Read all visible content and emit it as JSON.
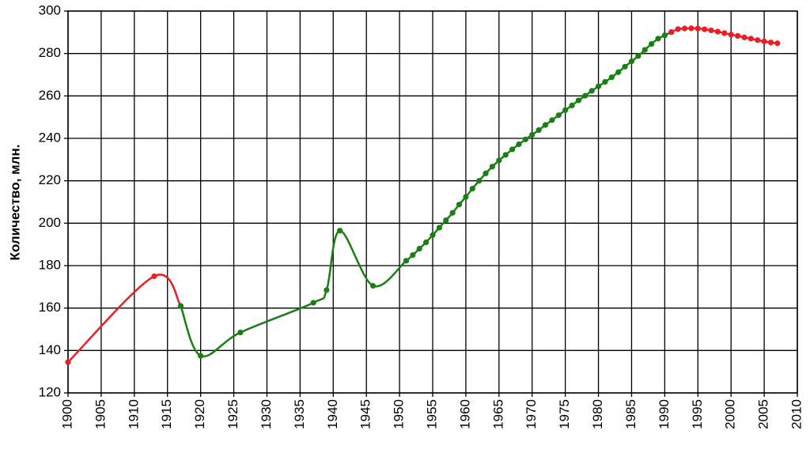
{
  "chart_data": {
    "type": "line",
    "y_label": "Количество, млн.",
    "xlim": [
      1900,
      2010
    ],
    "xticks": [
      1900,
      1905,
      1910,
      1915,
      1920,
      1925,
      1930,
      1935,
      1940,
      1945,
      1950,
      1955,
      1960,
      1965,
      1970,
      1975,
      1980,
      1985,
      1990,
      1995,
      2000,
      2005,
      2010
    ],
    "ylim": [
      120,
      300
    ],
    "yticks": [
      120,
      140,
      160,
      180,
      200,
      220,
      240,
      260,
      280,
      300
    ],
    "grid": true,
    "series": [
      {
        "color": "#ee1c24",
        "x": [
          1900,
          1913,
          1917
        ],
        "values": [
          134.5,
          175,
          161
        ]
      },
      {
        "color": "#1a7f12",
        "x": [
          1917,
          1920,
          1926,
          1937,
          1939,
          1941,
          1946,
          1951,
          1952,
          1953,
          1954,
          1955,
          1956,
          1957,
          1958,
          1959,
          1960,
          1961,
          1962,
          1963,
          1964,
          1965,
          1966,
          1967,
          1968,
          1969,
          1970,
          1971,
          1972,
          1973,
          1974,
          1975,
          1976,
          1977,
          1978,
          1979,
          1980,
          1981,
          1982,
          1983,
          1984,
          1985,
          1986,
          1987,
          1988,
          1989,
          1990,
          1991
        ],
        "values": [
          161,
          137.5,
          148.5,
          162.5,
          168.5,
          196.5,
          170.5,
          182.3,
          185,
          188,
          191,
          194.4,
          197.9,
          201.4,
          204.9,
          208.8,
          212.4,
          216.3,
          220,
          223.5,
          226.7,
          229.6,
          232.2,
          234.8,
          237.2,
          239.5,
          241.7,
          243.9,
          246.3,
          248.6,
          250.9,
          253.3,
          255.5,
          257.9,
          260.1,
          262.4,
          264.5,
          266.6,
          268.8,
          271.2,
          273.8,
          276.3,
          278.8,
          281.7,
          284.5,
          287,
          288.6,
          290.1
        ]
      },
      {
        "color": "#ee1c24",
        "x": [
          1991,
          1992,
          1993,
          1994,
          1995,
          1996,
          1997,
          1998,
          1999,
          2000,
          2001,
          2002,
          2003,
          2004,
          2005,
          2006,
          2007
        ],
        "values": [
          290.1,
          291.5,
          291.8,
          291.9,
          291.8,
          291.4,
          290.9,
          290.3,
          289.6,
          288.9,
          288.3,
          287.6,
          287,
          286.3,
          285.7,
          285.2,
          284.8
        ]
      }
    ]
  }
}
